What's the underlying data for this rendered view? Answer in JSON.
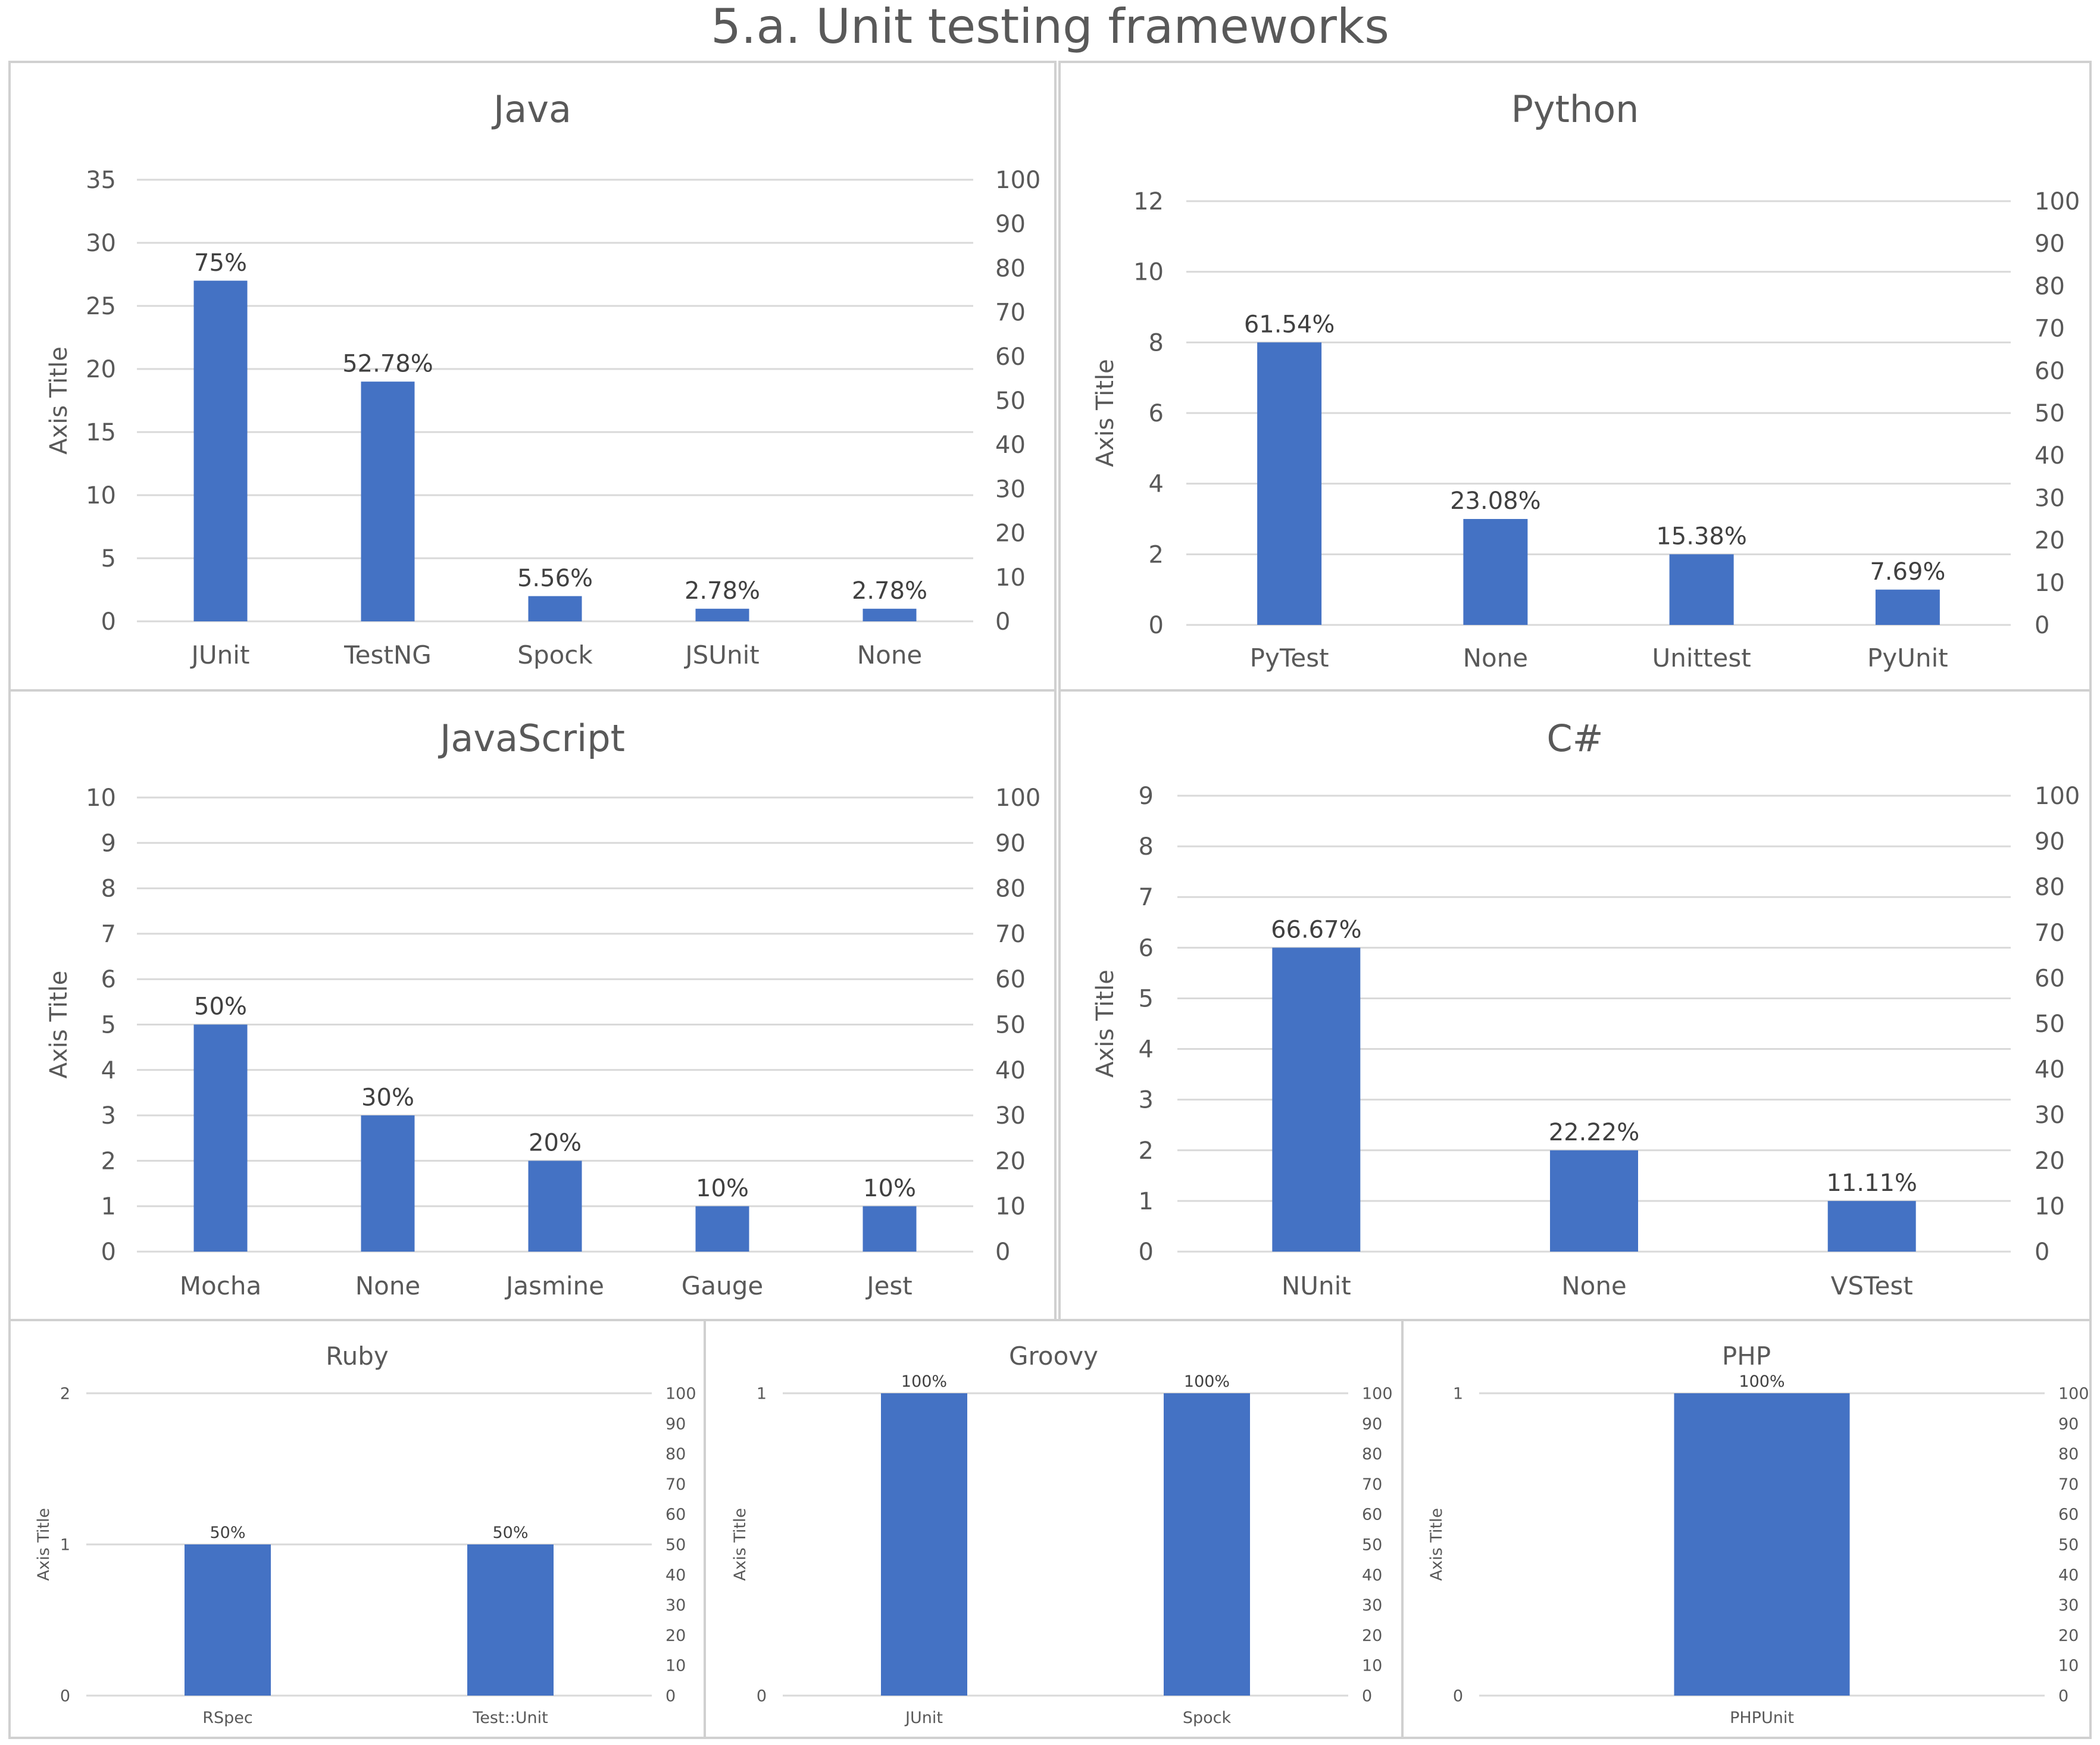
{
  "title": "5.a. Unit testing frameworks",
  "colors": {
    "bar": "#4472C4",
    "grid": "#d9d9d9",
    "border": "#d0d0d0",
    "text": "#595959"
  },
  "chart_data": [
    {
      "type": "bar",
      "title": "Java",
      "ylabel": "Axis Title",
      "ylim": [
        0,
        35
      ],
      "yticks": [
        0,
        5,
        10,
        15,
        20,
        25,
        30,
        35
      ],
      "y2lim": [
        0,
        100
      ],
      "y2ticks": [
        0,
        10,
        20,
        30,
        40,
        50,
        60,
        70,
        80,
        90,
        100
      ],
      "categories": [
        "JUnit",
        "TestNG",
        "Spock",
        "JSUnit",
        "None"
      ],
      "values": [
        27,
        19,
        2,
        1,
        1
      ],
      "labels": [
        "75%",
        "52.78%",
        "5.56%",
        "2.78%",
        "2.78%"
      ]
    },
    {
      "type": "bar",
      "title": "Python",
      "ylabel": "Axis Title",
      "ylim": [
        0,
        12
      ],
      "yticks": [
        0,
        2,
        4,
        6,
        8,
        10,
        12
      ],
      "y2lim": [
        0,
        100
      ],
      "y2ticks": [
        0,
        10,
        20,
        30,
        40,
        50,
        60,
        70,
        80,
        90,
        100
      ],
      "categories": [
        "PyTest",
        "None",
        "Unittest",
        "PyUnit"
      ],
      "values": [
        8,
        3,
        2,
        1
      ],
      "labels": [
        "61.54%",
        "23.08%",
        "15.38%",
        "7.69%"
      ]
    },
    {
      "type": "bar",
      "title": "JavaScript",
      "ylabel": "Axis Title",
      "ylim": [
        0,
        10
      ],
      "yticks": [
        0,
        1,
        2,
        3,
        4,
        5,
        6,
        7,
        8,
        9,
        10
      ],
      "y2lim": [
        0,
        100
      ],
      "y2ticks": [
        0,
        10,
        20,
        30,
        40,
        50,
        60,
        70,
        80,
        90,
        100
      ],
      "categories": [
        "Mocha",
        "None",
        "Jasmine",
        "Gauge",
        "Jest"
      ],
      "values": [
        5,
        3,
        2,
        1,
        1
      ],
      "labels": [
        "50%",
        "30%",
        "20%",
        "10%",
        "10%"
      ]
    },
    {
      "type": "bar",
      "title": "C#",
      "ylabel": "Axis Title",
      "ylim": [
        0,
        9
      ],
      "yticks": [
        0,
        1,
        2,
        3,
        4,
        5,
        6,
        7,
        8,
        9
      ],
      "y2lim": [
        0,
        100
      ],
      "y2ticks": [
        0,
        10,
        20,
        30,
        40,
        50,
        60,
        70,
        80,
        90,
        100
      ],
      "categories": [
        "NUnit",
        "None",
        "VSTest"
      ],
      "values": [
        6,
        2,
        1
      ],
      "labels": [
        "66.67%",
        "22.22%",
        "11.11%"
      ]
    },
    {
      "type": "bar",
      "title": "Ruby",
      "ylabel": "Axis Title",
      "ylim": [
        0,
        2
      ],
      "yticks": [
        0,
        1,
        2
      ],
      "y2lim": [
        0,
        100
      ],
      "y2ticks": [
        0,
        10,
        20,
        30,
        40,
        50,
        60,
        70,
        80,
        90,
        100
      ],
      "categories": [
        "RSpec",
        "Test::Unit"
      ],
      "values": [
        1,
        1
      ],
      "labels": [
        "50%",
        "50%"
      ]
    },
    {
      "type": "bar",
      "title": "Groovy",
      "ylabel": "Axis Title",
      "ylim": [
        0,
        1
      ],
      "yticks": [
        0,
        1
      ],
      "y2lim": [
        0,
        100
      ],
      "y2ticks": [
        0,
        10,
        20,
        30,
        40,
        50,
        60,
        70,
        80,
        90,
        100
      ],
      "categories": [
        "JUnit",
        "Spock"
      ],
      "values": [
        1,
        1
      ],
      "labels": [
        "100%",
        "100%"
      ]
    },
    {
      "type": "bar",
      "title": "PHP",
      "ylabel": "Axis Title",
      "ylim": [
        0,
        1
      ],
      "yticks": [
        0,
        1
      ],
      "y2lim": [
        0,
        100
      ],
      "y2ticks": [
        0,
        10,
        20,
        30,
        40,
        50,
        60,
        70,
        80,
        90,
        100
      ],
      "categories": [
        "PHPUnit"
      ],
      "values": [
        1
      ],
      "labels": [
        "100%"
      ]
    }
  ]
}
